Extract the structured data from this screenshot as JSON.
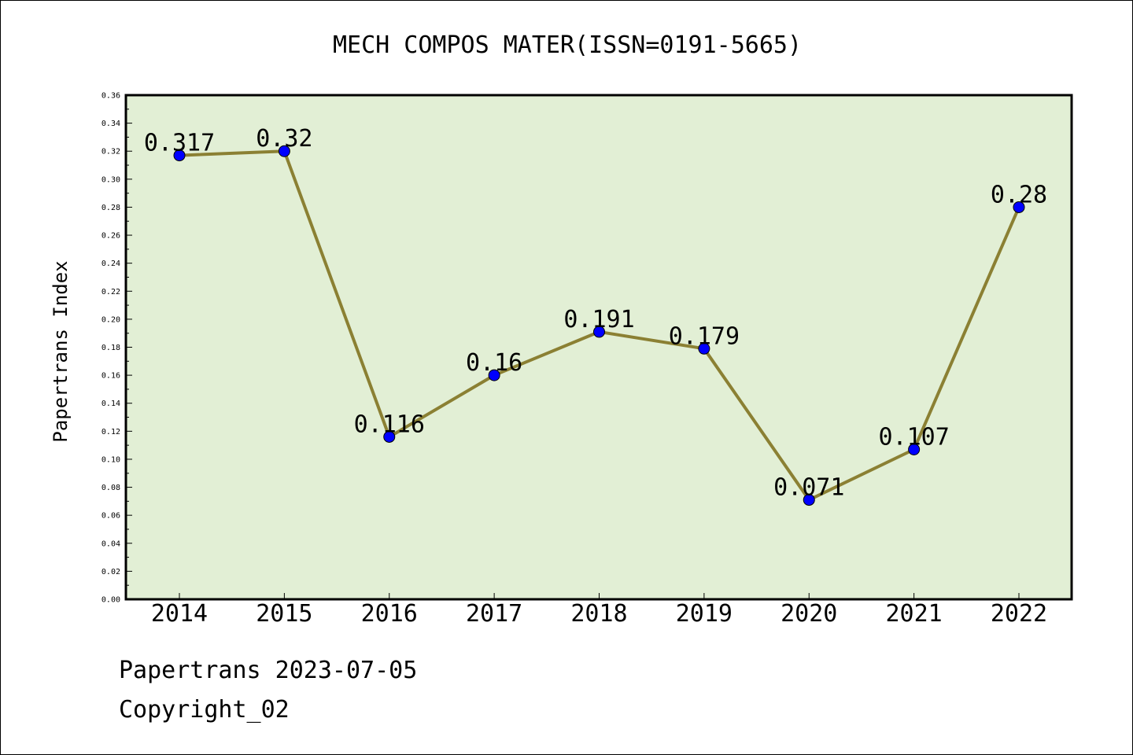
{
  "chart_data": {
    "type": "line",
    "title": "MECH COMPOS MATER(ISSN=0191-5665)",
    "xlabel": "",
    "ylabel": "Papertrans Index",
    "categories": [
      "2014",
      "2015",
      "2016",
      "2017",
      "2018",
      "2019",
      "2020",
      "2021",
      "2022"
    ],
    "values": [
      0.317,
      0.32,
      0.116,
      0.16,
      0.191,
      0.179,
      0.071,
      0.107,
      0.28
    ],
    "data_labels": [
      "0.317",
      "0.32",
      "0.116",
      "0.16",
      "0.191",
      "0.179",
      "0.071",
      "0.107",
      "0.28"
    ],
    "ylim": [
      0,
      0.36
    ],
    "yticks": [
      "0.00",
      "0.02",
      "0.04",
      "0.06",
      "0.08",
      "0.10",
      "0.12",
      "0.14",
      "0.16",
      "0.18",
      "0.20",
      "0.22",
      "0.24",
      "0.26",
      "0.28",
      "0.30",
      "0.32",
      "0.34",
      "0.36"
    ],
    "grid": false,
    "colors": {
      "plot_background": "#e2efd5",
      "line": "#8b8033",
      "marker": "#0000ff"
    }
  },
  "footer": {
    "line1": "Papertrans 2023-07-05",
    "line2": "Copyright_02"
  }
}
